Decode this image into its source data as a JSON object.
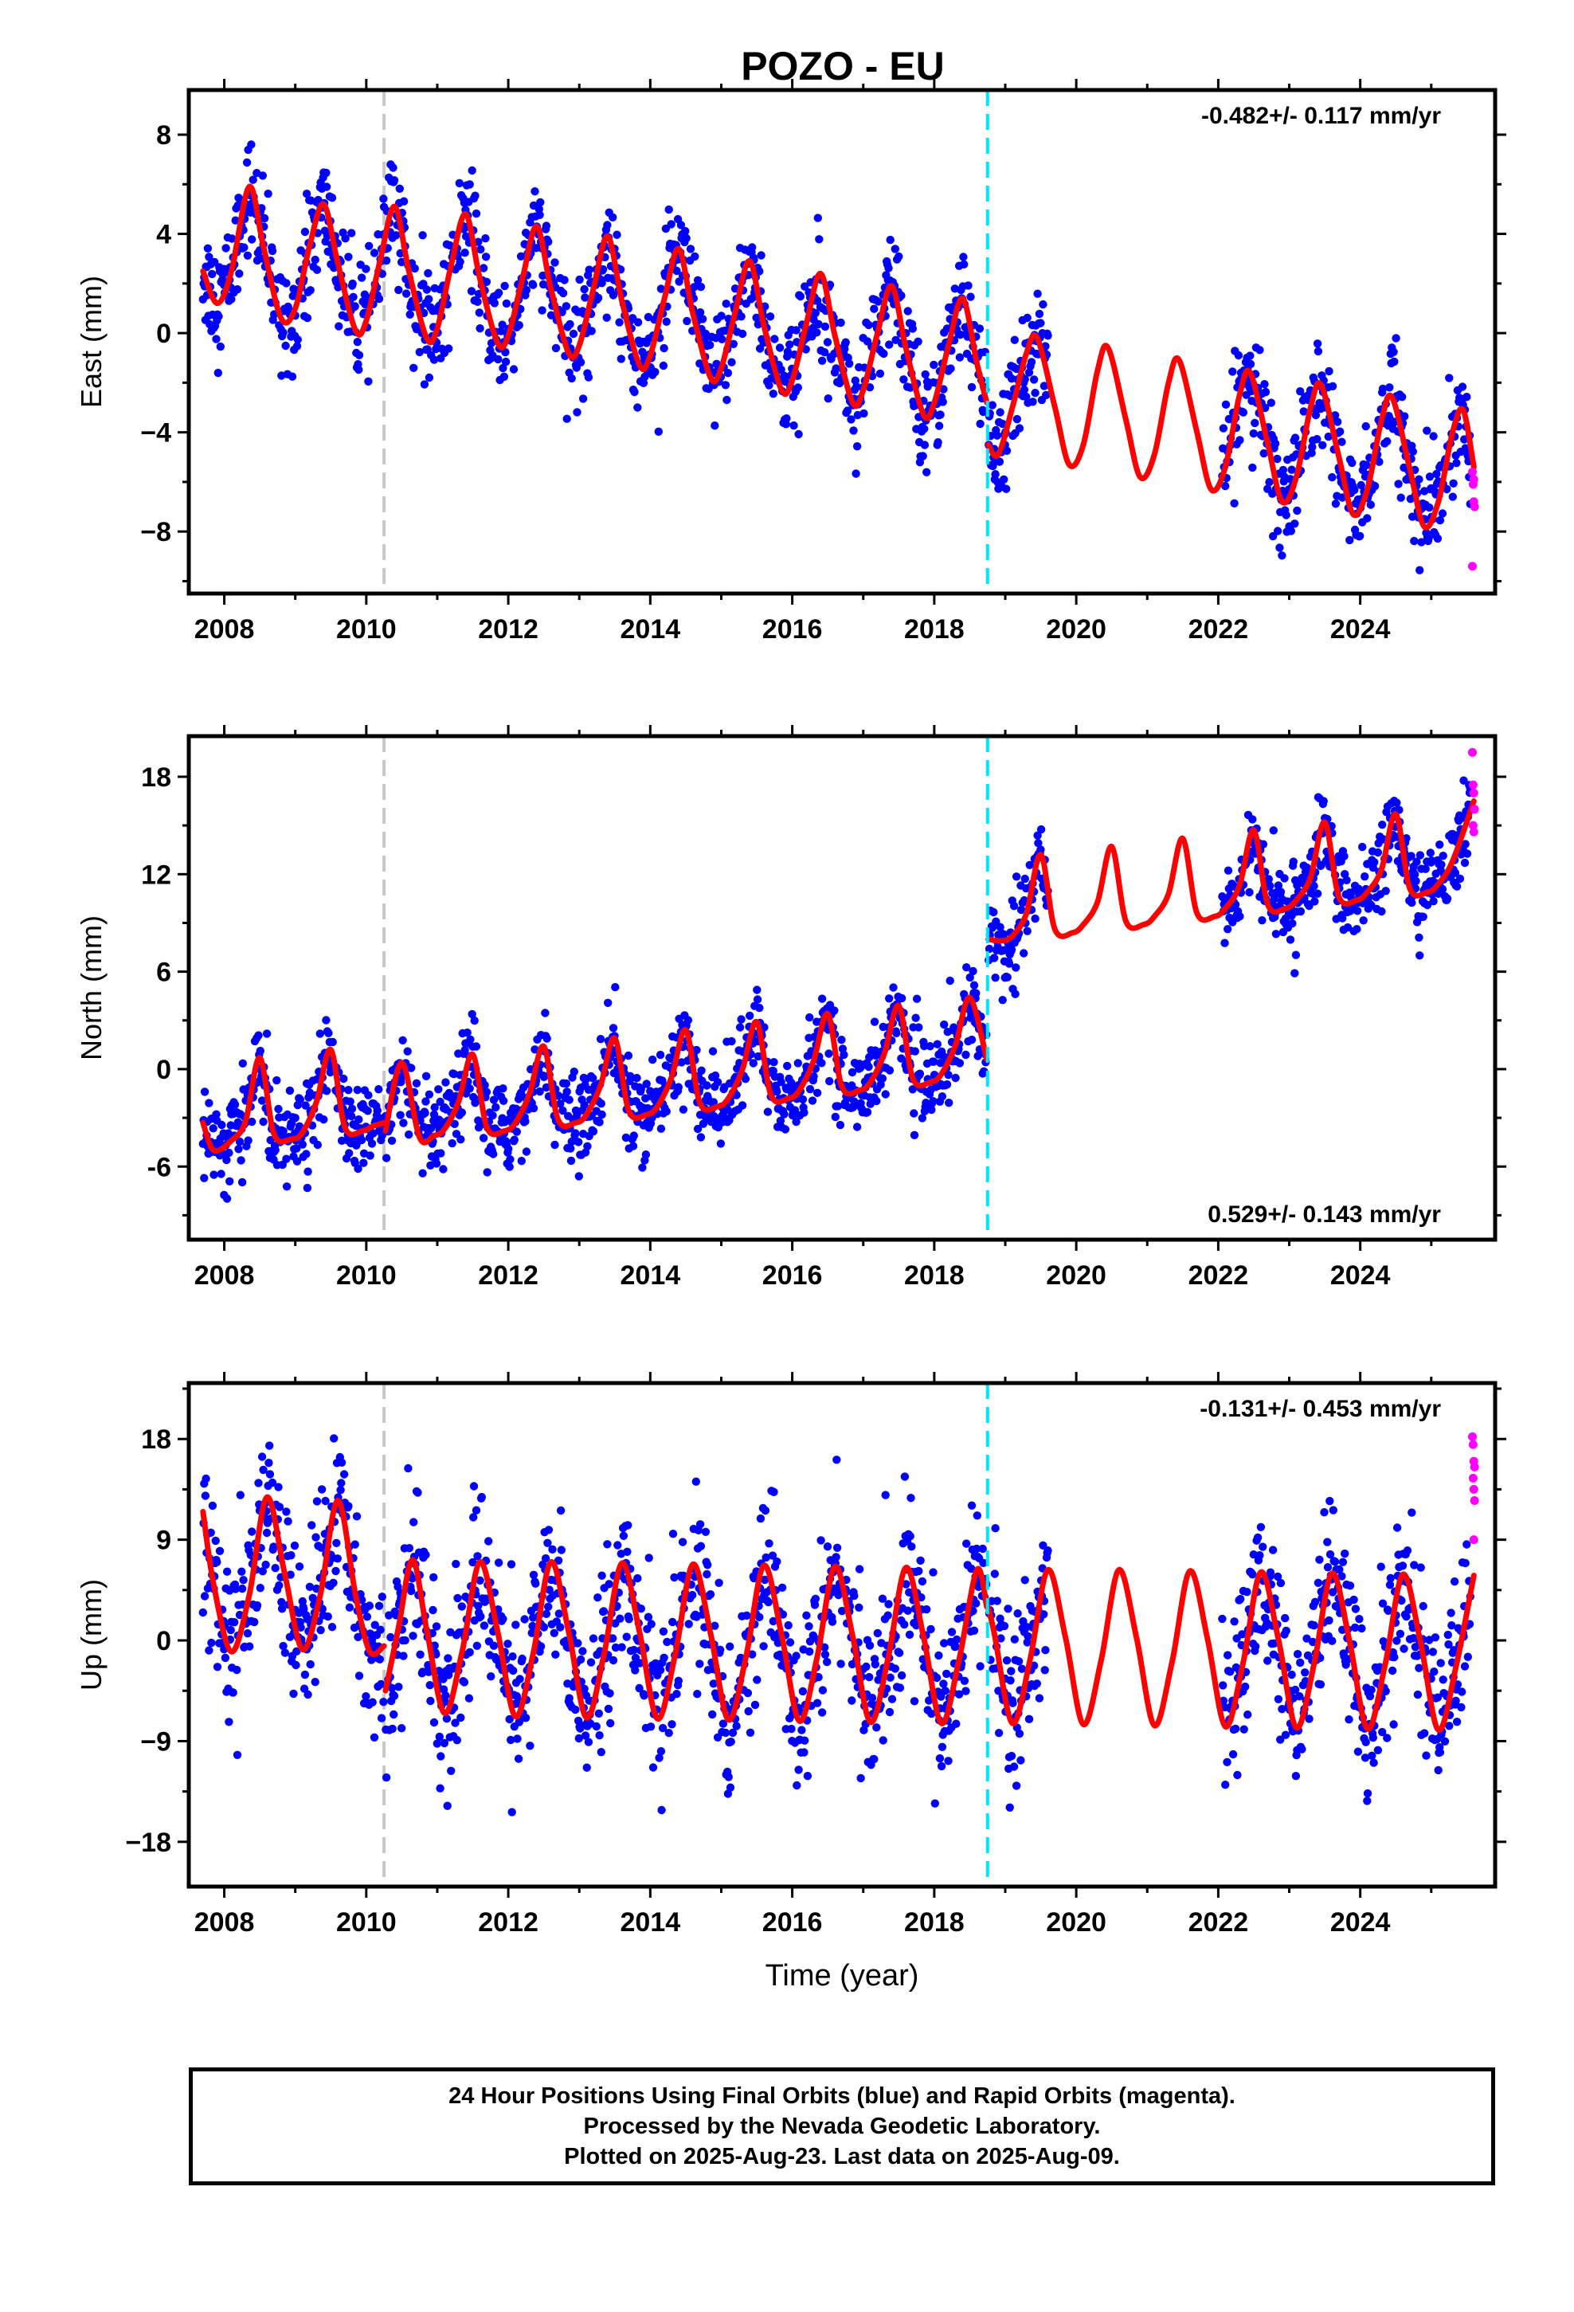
{
  "title": "POZO - EU",
  "colors": {
    "final_orbits": "#0000ff",
    "rapid_orbits": "#ff00ff",
    "model_fit": "#ff0000",
    "equipment_change": "#c8c8c8",
    "earthquake_offset": "#00e5ff"
  },
  "chart_data": [
    {
      "type": "scatter",
      "ylabel": "East (mm)",
      "xlabel": "",
      "xlim": [
        2007.5,
        2025.9
      ],
      "ylim": [
        -10.5,
        9.8
      ],
      "xticks": [
        2008,
        2010,
        2012,
        2014,
        2016,
        2018,
        2020,
        2022,
        2024
      ],
      "xtick_labels": [
        "2008",
        "2010",
        "2012",
        "2014",
        "2016",
        "2018",
        "2020",
        "2022",
        "2024"
      ],
      "yticks": [
        -8,
        -4,
        0,
        4,
        8
      ],
      "ytick_labels": [
        "−8",
        "−4",
        "0",
        "4",
        "8"
      ],
      "rate_annotation": "-0.482+/- 0.117 mm/yr",
      "rate_position": "top-right",
      "gray_line_x": 2010.25,
      "cyan_line_x": 2018.75,
      "model": {
        "segments": [
          {
            "x": [
              2007.7,
              2007.9,
              2008.1,
              2008.35,
              2008.55,
              2008.8,
              2009.0,
              2009.2,
              2009.4,
              2009.6,
              2009.85,
              2010.0,
              2010.2,
              2010.4,
              2010.6,
              2010.85,
              2011.0,
              2011.2,
              2011.4,
              2011.6,
              2011.85,
              2012.0,
              2012.2,
              2012.4,
              2012.6,
              2012.85,
              2013.0,
              2013.2,
              2013.4,
              2013.6,
              2013.85,
              2014.0,
              2014.2,
              2014.4,
              2014.6,
              2014.85,
              2015.0,
              2015.2,
              2015.4,
              2015.6,
              2015.85,
              2016.0,
              2016.2,
              2016.4,
              2016.6,
              2016.85,
              2017.0,
              2017.2,
              2017.4,
              2017.6,
              2017.85,
              2018.0,
              2018.2,
              2018.4,
              2018.6,
              2018.74
            ],
            "y": [
              2.5,
              1.2,
              2.5,
              5.9,
              3.5,
              0.6,
              1.0,
              3.5,
              5.2,
              2.8,
              0.1,
              0.5,
              3.0,
              5.1,
              2.5,
              -0.2,
              0.2,
              2.8,
              4.8,
              2.2,
              -0.4,
              -0.1,
              2.2,
              4.3,
              1.8,
              -0.8,
              -0.5,
              1.8,
              3.9,
              1.3,
              -1.3,
              -0.9,
              1.4,
              3.4,
              0.8,
              -1.8,
              -1.4,
              0.9,
              2.9,
              0.3,
              -2.3,
              -1.9,
              0.4,
              2.4,
              -0.1,
              -2.8,
              -2.3,
              0.0,
              1.9,
              -0.6,
              -3.3,
              -2.8,
              -0.5,
              1.4,
              -1.2,
              -2.8
            ]
          },
          {
            "x": [
              2018.76,
              2018.9,
              2019.1,
              2019.3,
              2019.45,
              2019.7,
              2019.9,
              2020.1,
              2020.3,
              2020.45,
              2020.7,
              2020.9,
              2021.1,
              2021.3,
              2021.45,
              2021.7,
              2021.9,
              2022.1,
              2022.3,
              2022.45,
              2022.7,
              2022.9,
              2023.1,
              2023.3,
              2023.45,
              2023.7,
              2023.9,
              2024.1,
              2024.3,
              2024.45,
              2024.7,
              2024.9,
              2025.1,
              2025.3,
              2025.45,
              2025.6
            ],
            "y": [
              -4.5,
              -4.9,
              -3.0,
              -0.8,
              -0.2,
              -3.0,
              -5.3,
              -4.5,
              -1.5,
              -0.6,
              -3.5,
              -5.8,
              -4.9,
              -2.0,
              -1.1,
              -4.0,
              -6.3,
              -5.4,
              -2.5,
              -1.6,
              -4.5,
              -6.8,
              -5.8,
              -3.0,
              -2.1,
              -5.0,
              -7.3,
              -6.3,
              -3.5,
              -2.6,
              -5.5,
              -7.8,
              -6.8,
              -4.0,
              -3.1,
              -5.4
            ]
          }
        ]
      },
      "scatter_final": {
        "gaps": [
          [
            2019.6,
            2022.05
          ]
        ],
        "x_range": [
          2007.7,
          2025.55
        ],
        "spread": 1.1
      },
      "scatter_rapid": {
        "x": [
          2025.58,
          2025.59,
          2025.6,
          2025.61,
          2025.58,
          2025.6
        ],
        "y": [
          -5.6,
          -6.1,
          -6.8,
          -7.0,
          -9.4,
          -5.9
        ]
      }
    },
    {
      "type": "scatter",
      "ylabel": "North (mm)",
      "xlabel": "",
      "xlim": [
        2007.5,
        2025.9
      ],
      "ylim": [
        -10.5,
        20.5
      ],
      "xticks": [
        2008,
        2010,
        2012,
        2014,
        2016,
        2018,
        2020,
        2022,
        2024
      ],
      "xtick_labels": [
        "2008",
        "2010",
        "2012",
        "2014",
        "2016",
        "2018",
        "2020",
        "2022",
        "2024"
      ],
      "yticks": [
        -6,
        0,
        6,
        12,
        18
      ],
      "ytick_labels": [
        "-6",
        "0",
        "6",
        "12",
        "18"
      ],
      "rate_annotation": "0.529+/- 0.143 mm/yr",
      "rate_position": "bottom-right",
      "gray_line_x": 2010.25,
      "cyan_line_x": 2018.75,
      "model": {
        "segments": [
          {
            "x": [
              2007.7,
              2007.85,
              2008.1,
              2008.3,
              2008.5,
              2008.7,
              2008.95,
              2009.1,
              2009.3,
              2009.5,
              2009.7,
              2009.95,
              2010.1,
              2010.25
            ],
            "y": [
              -3.3,
              -5.0,
              -4.4,
              -3.2,
              0.7,
              -4.0,
              -4.3,
              -3.9,
              -2.0,
              1.2,
              -3.6,
              -3.8,
              -3.5,
              -3.3
            ]
          },
          {
            "x": [
              2010.27,
              2010.5,
              2010.75,
              2010.95,
              2011.1,
              2011.3,
              2011.5,
              2011.7,
              2011.95,
              2012.1,
              2012.3,
              2012.5,
              2012.7,
              2012.95,
              2013.1,
              2013.3,
              2013.5,
              2013.7,
              2013.95,
              2014.1,
              2014.3,
              2014.5,
              2014.7,
              2014.95,
              2015.1,
              2015.3,
              2015.5,
              2015.7,
              2015.95,
              2016.1,
              2016.3,
              2016.5,
              2016.7,
              2016.95,
              2017.1,
              2017.3,
              2017.5,
              2017.7,
              2017.95,
              2018.1,
              2018.3,
              2018.5,
              2018.74
            ],
            "y": [
              -3.8,
              0.4,
              -4.2,
              -4.1,
              -3.7,
              -2.0,
              0.9,
              -3.6,
              -3.8,
              -3.3,
              -1.5,
              1.4,
              -3.1,
              -3.3,
              -2.8,
              -1.0,
              1.9,
              -2.6,
              -2.8,
              -2.3,
              -0.5,
              2.4,
              -2.1,
              -2.3,
              -1.8,
              0.0,
              2.9,
              -1.6,
              -1.8,
              -1.3,
              0.5,
              3.4,
              -1.1,
              -1.3,
              -0.8,
              1.0,
              3.9,
              -0.6,
              -0.8,
              -0.3,
              1.5,
              4.4,
              0.6
            ]
          },
          {
            "x": [
              2018.76,
              2018.95,
              2019.1,
              2019.3,
              2019.5,
              2019.7,
              2019.95,
              2020.1,
              2020.3,
              2020.5,
              2020.7,
              2020.95,
              2021.1,
              2021.3,
              2021.5,
              2021.7,
              2021.95,
              2022.1,
              2022.3,
              2022.5,
              2022.7,
              2022.95,
              2023.1,
              2023.3,
              2023.5,
              2023.7,
              2023.95,
              2024.1,
              2024.3,
              2024.5,
              2024.7,
              2024.95,
              2025.1,
              2025.3,
              2025.6
            ],
            "y": [
              8.0,
              7.9,
              8.2,
              9.6,
              13.2,
              8.6,
              8.4,
              8.9,
              10.3,
              13.7,
              9.1,
              8.9,
              9.4,
              10.8,
              14.2,
              9.6,
              9.4,
              9.9,
              11.3,
              14.7,
              10.1,
              9.9,
              10.4,
              11.8,
              15.2,
              10.6,
              10.4,
              10.9,
              12.3,
              15.7,
              11.1,
              10.9,
              11.4,
              12.8,
              16.5
            ]
          }
        ]
      },
      "scatter_final": {
        "gaps": [
          [
            2019.6,
            2022.05
          ]
        ],
        "x_range": [
          2007.7,
          2025.55
        ],
        "spread": 1.3
      },
      "scatter_rapid": {
        "x": [
          2025.58,
          2025.59,
          2025.6,
          2025.61,
          2025.59,
          2025.6
        ],
        "y": [
          19.5,
          17.5,
          17.0,
          16.0,
          15.0,
          14.6
        ]
      }
    },
    {
      "type": "scatter",
      "ylabel": "Up (mm)",
      "xlabel": "Time (year)",
      "xlim": [
        2007.5,
        2025.9
      ],
      "ylim": [
        -22.0,
        23.0
      ],
      "xticks": [
        2008,
        2010,
        2012,
        2014,
        2016,
        2018,
        2020,
        2022,
        2024
      ],
      "xtick_labels": [
        "2008",
        "2010",
        "2012",
        "2014",
        "2016",
        "2018",
        "2020",
        "2022",
        "2024"
      ],
      "yticks": [
        -18,
        -9,
        0,
        9,
        18
      ],
      "ytick_labels": [
        "−18",
        "−9",
        "0",
        "9",
        "18"
      ],
      "rate_annotation": "-0.131+/- 0.453 mm/yr",
      "rate_position": "top-right",
      "gray_line_x": 2010.25,
      "cyan_line_x": 2018.75,
      "model": {
        "segments": [
          {
            "x": [
              2007.7,
              2007.85,
              2008.1,
              2008.35,
              2008.6,
              2008.85,
              2009.1,
              2009.35,
              2009.6,
              2009.85,
              2010.05,
              2010.25
            ],
            "y": [
              11.5,
              5.0,
              -1.0,
              4.0,
              12.8,
              6.0,
              -0.8,
              4.0,
              12.5,
              4.0,
              -1.0,
              -0.5
            ]
          },
          {
            "x": [
              2010.27,
              2010.45,
              2010.65,
              2010.85,
              2011.1,
              2011.35,
              2011.6,
              2011.85,
              2012.1,
              2012.35,
              2012.6,
              2012.85,
              2013.1,
              2013.35,
              2013.6,
              2013.85,
              2014.1,
              2014.35,
              2014.6,
              2014.85,
              2015.1,
              2015.35,
              2015.6,
              2015.85,
              2016.1,
              2016.35,
              2016.6,
              2016.85,
              2017.1,
              2017.35,
              2017.6,
              2017.85,
              2018.1,
              2018.35,
              2018.6,
              2018.74
            ],
            "y": [
              -4.5,
              1.0,
              7.2,
              1.0,
              -6.5,
              -1.0,
              7.0,
              0.8,
              -6.8,
              -1.2,
              7.0,
              0.8,
              -6.9,
              -1.2,
              6.9,
              0.7,
              -7.0,
              -1.3,
              6.8,
              0.6,
              -7.1,
              -1.4,
              6.7,
              0.5,
              -7.2,
              -1.5,
              6.6,
              0.4,
              -7.3,
              -1.6,
              6.5,
              0.3,
              -7.4,
              -1.7,
              6.3,
              3.0
            ]
          },
          {
            "x": [
              2018.76,
              2018.85,
              2019.1,
              2019.35,
              2019.6,
              2019.85,
              2020.1,
              2020.35,
              2020.6,
              2020.85,
              2021.1,
              2021.35,
              2021.6,
              2021.85,
              2022.1,
              2022.35,
              2022.6,
              2022.85,
              2023.1,
              2023.35,
              2023.6,
              2023.85,
              2024.1,
              2024.35,
              2024.6,
              2024.85,
              2025.1,
              2025.35,
              2025.6
            ],
            "y": [
              3.0,
              0.5,
              -7.4,
              -1.7,
              6.3,
              0.2,
              -7.5,
              -1.8,
              6.3,
              0.2,
              -7.6,
              -1.9,
              6.2,
              0.1,
              -7.7,
              -2.0,
              6.1,
              0.0,
              -7.8,
              -2.1,
              6.0,
              -0.1,
              -7.9,
              -2.2,
              5.9,
              -0.2,
              -8.0,
              -2.3,
              5.8
            ]
          }
        ]
      },
      "scatter_final": {
        "gaps": [
          [
            2019.6,
            2022.05
          ]
        ],
        "x_range": [
          2007.7,
          2025.55
        ],
        "spread": 3.6
      },
      "scatter_rapid": {
        "x": [
          2025.58,
          2025.59,
          2025.6,
          2025.61,
          2025.59,
          2025.6,
          2025.61,
          2025.6
        ],
        "y": [
          18.2,
          17.5,
          16.0,
          15.5,
          14.5,
          13.5,
          12.5,
          9.0
        ]
      }
    }
  ],
  "footer": {
    "line1": "24 Hour Positions Using Final Orbits (blue) and Rapid Orbits (magenta).",
    "line2": "Processed by the Nevada Geodetic Laboratory.",
    "line3": "Plotted on 2025-Aug-23. Last data on 2025-Aug-09."
  }
}
